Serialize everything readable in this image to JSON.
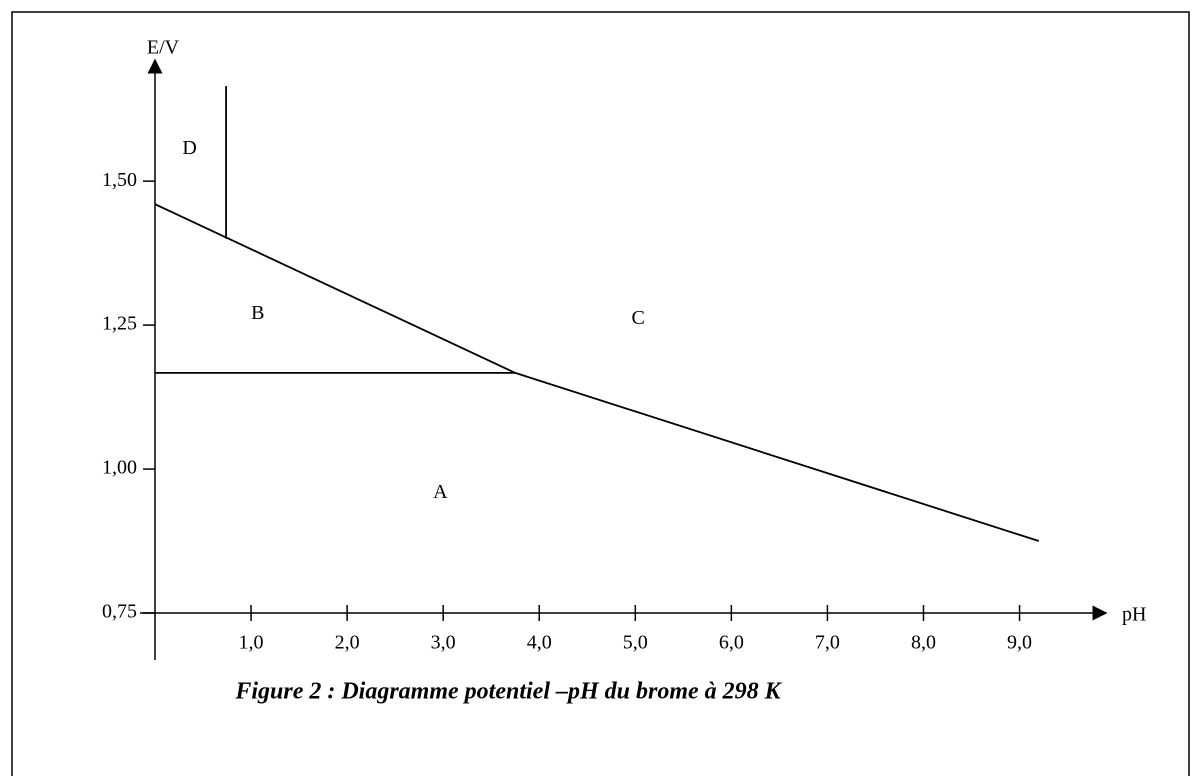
{
  "chart_data": {
    "type": "line",
    "title": "Figure 2 : Diagramme potentiel –pH du brome à 298 K",
    "x_label": "pH",
    "y_label": "E/V",
    "xlim": [
      0,
      9.9
    ],
    "ylim": [
      0.75,
      1.7
    ],
    "xticks": [
      {
        "value": 1,
        "label": "1,0"
      },
      {
        "value": 2,
        "label": "2,0"
      },
      {
        "value": 3,
        "label": "3,0"
      },
      {
        "value": 4,
        "label": "4,0"
      },
      {
        "value": 5,
        "label": "5,0"
      },
      {
        "value": 6,
        "label": "6,0"
      },
      {
        "value": 7,
        "label": "7,0"
      },
      {
        "value": 8,
        "label": "8,0"
      },
      {
        "value": 9,
        "label": "9,0"
      }
    ],
    "yticks": [
      {
        "value": 0.75,
        "label": "0,75"
      },
      {
        "value": 1,
        "label": "1,00"
      },
      {
        "value": 1.25,
        "label": "1,25"
      },
      {
        "value": 1.5,
        "label": "1,50"
      }
    ],
    "series": [
      {
        "color": "#000000",
        "x": [
          0,
          3.75,
          9.2
        ],
        "values": [
          1.46,
          1.167,
          0.875
        ]
      },
      {
        "color": "#000000",
        "x": [
          0,
          3.75
        ],
        "values": [
          1.167,
          1.167
        ]
      },
      {
        "color": "#000000",
        "x": [
          0.74,
          0.74
        ],
        "values": [
          1.4,
          1.665
        ]
      }
    ],
    "annotations": [
      {
        "text": "D",
        "x": 0.36,
        "y": 1.555
      },
      {
        "text": "B",
        "x": 1.07,
        "y": 1.269
      },
      {
        "text": "C",
        "x": 5.03,
        "y": 1.26
      },
      {
        "text": "A",
        "x": 2.97,
        "y": 0.958
      }
    ]
  }
}
